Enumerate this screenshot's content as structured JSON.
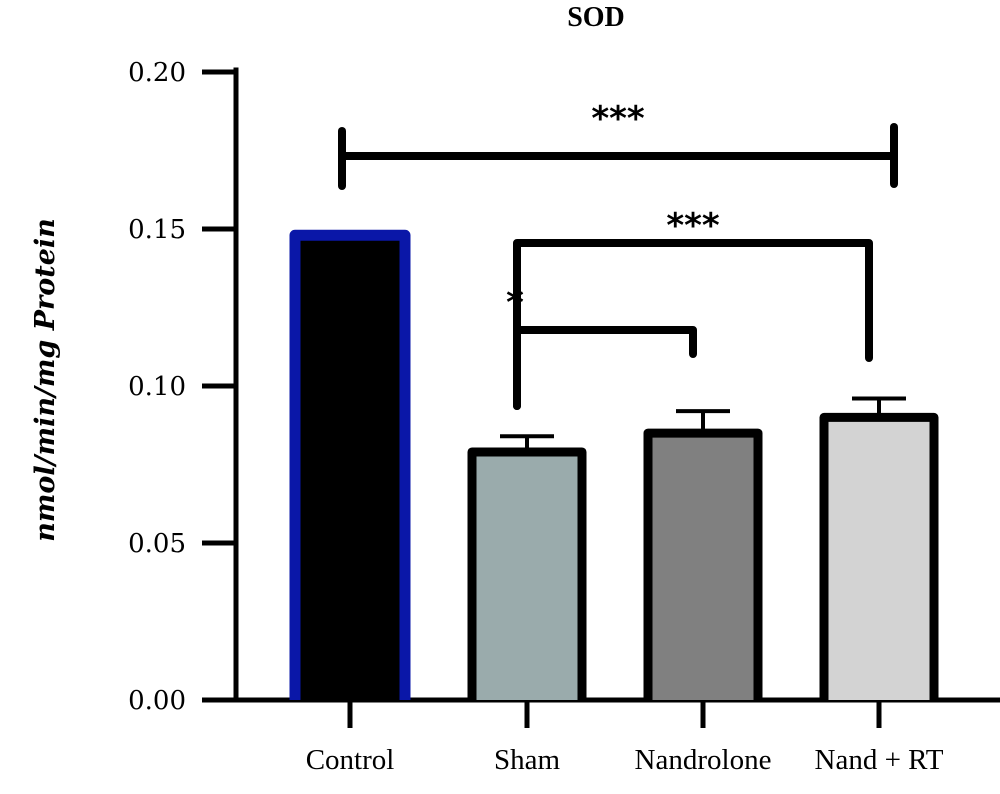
{
  "chart_data": {
    "type": "bar",
    "title": "SOD",
    "xlabel": "",
    "ylabel": "nmol/min/mg Protein",
    "ylim": [
      0,
      0.2
    ],
    "yticks": [
      "0.00",
      "0.05",
      "0.10",
      "0.15",
      "0.20"
    ],
    "categories": [
      "Control",
      "Sham",
      "Nandrolone",
      "Nand + RT"
    ],
    "values": [
      0.148,
      0.079,
      0.085,
      0.09
    ],
    "errors": [
      0.001,
      0.005,
      0.007,
      0.006
    ],
    "bar_colors": [
      "#000000",
      "#9aabac",
      "#808080",
      "#d3d3d3"
    ],
    "bar_outline_colors": [
      "#0a17a8",
      "#000000",
      "#000000",
      "#000000"
    ],
    "significance": [
      {
        "from": "Control",
        "to": "Nand + RT",
        "label": "***"
      },
      {
        "from": "Sham",
        "to": "Nand + RT",
        "label": "***"
      },
      {
        "from": "Sham",
        "to": "Nandrolone",
        "label": "*"
      }
    ],
    "grid": false,
    "legend": "none"
  }
}
